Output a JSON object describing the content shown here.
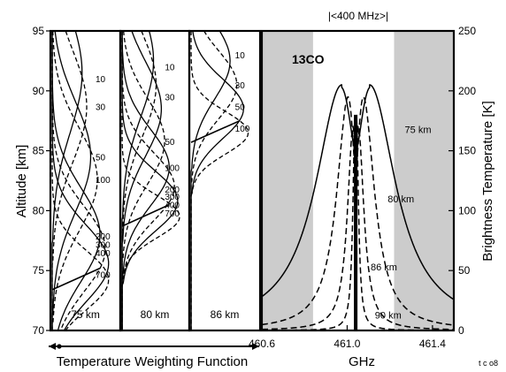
{
  "chart_data": [
    {
      "type": "line",
      "xlabel": "Temperature Weighting Function",
      "ylabel": "Altitude [km]",
      "ylim": [
        70,
        95
      ],
      "yticks": [
        "95",
        "90",
        "85",
        "80",
        "75",
        "70"
      ],
      "panels": [
        {
          "label": "75 km",
          "curve_labels": [
            {
              "text": "10",
              "y": 91.0
            },
            {
              "text": "30",
              "y": 88.7
            },
            {
              "text": "50",
              "y": 84.5
            },
            {
              "text": "100",
              "y": 82.6
            },
            {
              "text": "200",
              "y": 77.9
            },
            {
              "text": "300",
              "y": 77.2
            },
            {
              "text": "400",
              "y": 76.5
            },
            {
              "text": "700",
              "y": 74.7
            }
          ],
          "curves": [
            {
              "peak_alt": 74.2,
              "width": 3.5,
              "amp": 0.85,
              "dashed": true
            },
            {
              "peak_alt": 75.6,
              "width": 4.5,
              "amp": 0.85,
              "dashed": false
            },
            {
              "peak_alt": 76.8,
              "width": 5.0,
              "amp": 0.8,
              "dashed": true
            },
            {
              "peak_alt": 78.0,
              "width": 5.5,
              "amp": 0.72,
              "dashed": false
            },
            {
              "peak_alt": 82.6,
              "width": 6.0,
              "amp": 0.68,
              "dashed": true
            },
            {
              "peak_alt": 84.5,
              "width": 6.5,
              "amp": 0.58,
              "dashed": false
            },
            {
              "peak_alt": 88.7,
              "width": 6.5,
              "amp": 0.52,
              "dashed": true
            },
            {
              "peak_alt": 91.5,
              "width": 7.0,
              "amp": 0.45,
              "dashed": false
            }
          ]
        },
        {
          "label": "80 km",
          "curve_labels": [
            {
              "text": "10",
              "y": 92.0
            },
            {
              "text": "30",
              "y": 89.5
            },
            {
              "text": "50",
              "y": 85.8
            },
            {
              "text": "100",
              "y": 83.6
            },
            {
              "text": "200",
              "y": 81.8
            },
            {
              "text": "300",
              "y": 81.2
            },
            {
              "text": "400",
              "y": 80.5
            },
            {
              "text": "700",
              "y": 79.8
            }
          ],
          "curves": [
            {
              "peak_alt": 79.5,
              "width": 2.5,
              "amp": 0.88,
              "dashed": true
            },
            {
              "peak_alt": 80.8,
              "width": 3.5,
              "amp": 0.85,
              "dashed": false
            },
            {
              "peak_alt": 82.0,
              "width": 4.0,
              "amp": 0.8,
              "dashed": true
            },
            {
              "peak_alt": 83.6,
              "width": 4.5,
              "amp": 0.72,
              "dashed": false
            },
            {
              "peak_alt": 85.8,
              "width": 5.0,
              "amp": 0.65,
              "dashed": true
            },
            {
              "peak_alt": 88.5,
              "width": 5.5,
              "amp": 0.6,
              "dashed": false
            },
            {
              "peak_alt": 90.5,
              "width": 6.0,
              "amp": 0.52,
              "dashed": true
            },
            {
              "peak_alt": 92.5,
              "width": 6.5,
              "amp": 0.48,
              "dashed": false
            }
          ]
        },
        {
          "label": "86 km",
          "curve_labels": [
            {
              "text": "10",
              "y": 93.0
            },
            {
              "text": "30",
              "y": 90.5
            },
            {
              "text": "50",
              "y": 88.7
            },
            {
              "text": "100",
              "y": 86.9
            }
          ],
          "curves": [
            {
              "peak_alt": 86.5,
              "width": 2.5,
              "amp": 0.85,
              "dashed": true
            },
            {
              "peak_alt": 88.5,
              "width": 3.5,
              "amp": 0.78,
              "dashed": false
            },
            {
              "peak_alt": 90.5,
              "width": 4.0,
              "amp": 0.68,
              "dashed": true
            },
            {
              "peak_alt": 92.5,
              "width": 4.5,
              "amp": 0.58,
              "dashed": false
            }
          ]
        }
      ]
    },
    {
      "type": "line",
      "title": "|<400 MHz>|",
      "annotation": "13CO",
      "xlabel": "GHz",
      "ylabel": "Brightness Temperature [K]",
      "xlim": [
        460.6,
        461.5
      ],
      "ylim": [
        0,
        250
      ],
      "xticks": [
        "460.6",
        "461.0",
        "461.4"
      ],
      "yticks": [
        "0",
        "50",
        "100",
        "150",
        "200",
        "250"
      ],
      "shaded_regions": [
        [
          460.6,
          460.84
        ],
        [
          461.22,
          461.5
        ]
      ],
      "center": 461.04,
      "series": [
        {
          "name": "75 km",
          "peak": 205,
          "peak_offset": 0.065,
          "hwhm": 0.15,
          "dip_width": 0.04,
          "dashed": false
        },
        {
          "name": "80 km",
          "peak": 195,
          "peak_offset": 0.035,
          "hwhm": 0.065,
          "dip_width": 0.018,
          "dashed": true
        },
        {
          "name": "86 km",
          "peak": 170,
          "peak_offset": 0.012,
          "hwhm": 0.032,
          "dip_width": 0.006,
          "dashed": true
        },
        {
          "name": "90 km",
          "peak": 180,
          "peak_offset": 0.003,
          "hwhm": 0.012,
          "dip_width": 0.0015,
          "dashed": true
        }
      ],
      "series_labels": [
        {
          "text": "75 km",
          "x": 461.27,
          "y": 165
        },
        {
          "text": "80 km",
          "x": 461.19,
          "y": 107
        },
        {
          "text": "86 km",
          "x": 461.11,
          "y": 50
        },
        {
          "text": "90 km",
          "x": 461.13,
          "y": 10
        }
      ]
    }
  ],
  "footer": {
    "code": "t c o8"
  }
}
